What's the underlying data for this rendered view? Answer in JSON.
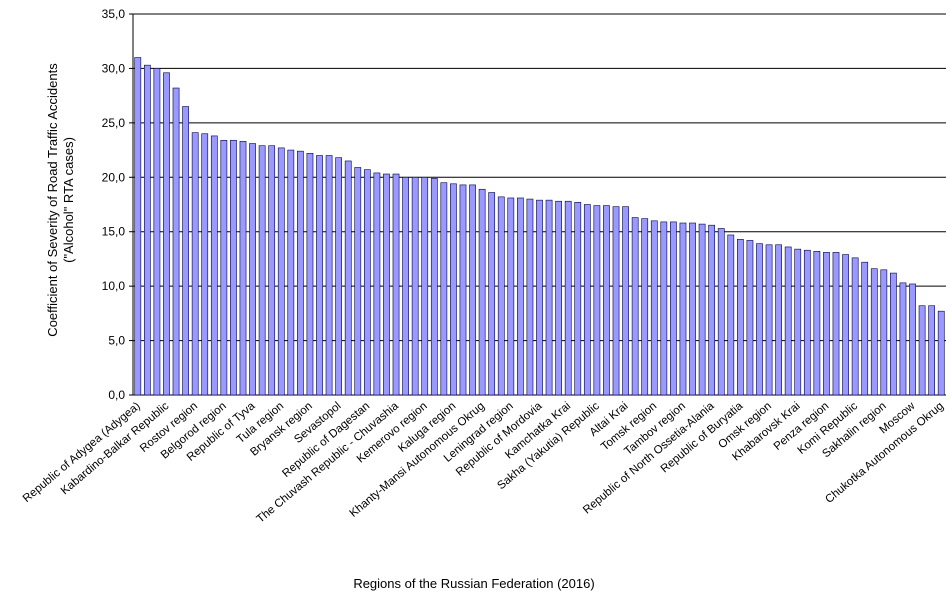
{
  "chart_data": {
    "type": "bar",
    "y_label": [
      "Coefficient of Severity of Road Traffic Accidents",
      "(\"Alcohol\" RTA cases)"
    ],
    "x_label": "Regions of the Russian Federation (2016)",
    "categories": [
      "Republic of Adygea (Adygea)",
      null,
      null,
      "Kabardino-Balkar Republic",
      null,
      null,
      "Rostov region",
      null,
      null,
      "Belgorod region",
      null,
      null,
      "Republic of Tyva",
      null,
      null,
      "Tula region",
      null,
      null,
      "Bryansk region",
      null,
      null,
      "Sevastopol",
      null,
      null,
      "Republic of Dagestan",
      null,
      null,
      "The Chuvash Republic - Chuvashia",
      null,
      null,
      "Kemerovo region",
      null,
      null,
      "Kaluga region",
      null,
      null,
      "Khanty-Mansi Autonomous Okrug",
      null,
      null,
      "Leningrad region",
      null,
      null,
      "Republic of Mordovia",
      null,
      null,
      "Kamchatka Krai",
      null,
      null,
      "Sakha (Yakutia) Republic",
      null,
      null,
      "Altai Krai",
      null,
      null,
      "Tomsk region",
      null,
      null,
      "Tambov region",
      null,
      null,
      "Republic of North Ossetia-Alania",
      null,
      null,
      "Republic of Buryatia",
      null,
      null,
      "Omsk region",
      null,
      null,
      "Khabarovsk Krai",
      null,
      null,
      "Penza region",
      null,
      null,
      "Komi Republic",
      null,
      null,
      "Sakhalin region",
      null,
      null,
      "Moscow",
      null,
      null,
      "Chukotka Autonomous Okrug"
    ],
    "values": [
      31.0,
      30.3,
      30.0,
      29.6,
      28.2,
      26.5,
      24.1,
      24.0,
      23.8,
      23.4,
      23.4,
      23.3,
      23.1,
      22.9,
      22.9,
      22.7,
      22.5,
      22.4,
      22.2,
      22.0,
      22.0,
      21.8,
      21.5,
      20.9,
      20.7,
      20.4,
      20.3,
      20.3,
      20.0,
      20.0,
      20.0,
      19.9,
      19.5,
      19.4,
      19.3,
      19.3,
      18.9,
      18.6,
      18.2,
      18.1,
      18.1,
      18.0,
      17.9,
      17.9,
      17.8,
      17.8,
      17.7,
      17.5,
      17.4,
      17.4,
      17.3,
      17.3,
      16.3,
      16.2,
      16.0,
      15.9,
      15.9,
      15.8,
      15.8,
      15.7,
      15.6,
      15.3,
      14.7,
      14.3,
      14.2,
      13.9,
      13.8,
      13.8,
      13.6,
      13.4,
      13.3,
      13.2,
      13.1,
      13.1,
      12.9,
      12.6,
      12.2,
      11.6,
      11.5,
      11.2,
      10.3,
      10.2,
      8.2,
      8.2,
      7.7
    ],
    "color": "#9999ff",
    "ylim": [
      0,
      35
    ],
    "yticks": [
      {
        "value": 0,
        "label": "0,0"
      },
      {
        "value": 5,
        "label": "5,0"
      },
      {
        "value": 10,
        "label": "10,0"
      },
      {
        "value": 15,
        "label": "15,0"
      },
      {
        "value": 20,
        "label": "20,0"
      },
      {
        "value": 25,
        "label": "25,0"
      },
      {
        "value": 30,
        "label": "30,0"
      },
      {
        "value": 35,
        "label": "35,0"
      }
    ],
    "grid": true
  }
}
